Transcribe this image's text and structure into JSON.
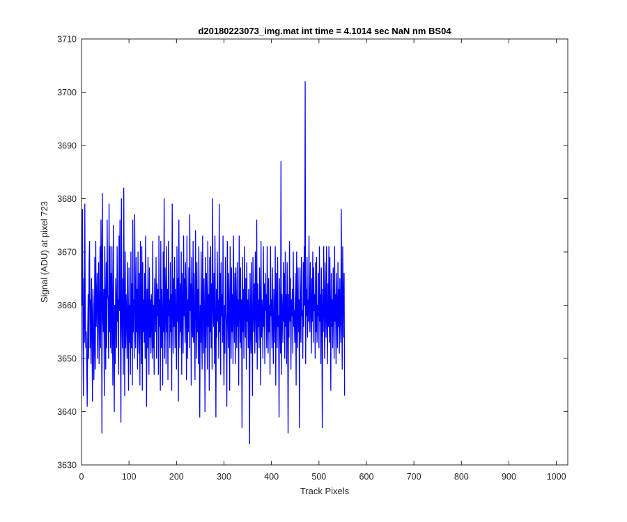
{
  "chart_data": {
    "type": "line",
    "title": "d20180223073_img.mat int time = 4.1014 sec  NaN nm BS04",
    "xlabel": "Track Pixels",
    "ylabel": "Signal (ADU) at pixel 723",
    "xlim": [
      0,
      1024
    ],
    "ylim": [
      3630,
      3710
    ],
    "xticks": [
      0,
      100,
      200,
      300,
      400,
      500,
      600,
      700,
      800,
      900,
      1000
    ],
    "yticks": [
      3630,
      3640,
      3650,
      3660,
      3670,
      3680,
      3690,
      3700,
      3710
    ],
    "grid": false,
    "box": true,
    "line_color": "#0000ff",
    "series": [
      {
        "x_start": 1,
        "x_step": 1,
        "values": [
          3660,
          3678,
          3655,
          3643,
          3665,
          3653,
          3679,
          3656,
          3652,
          3655,
          3649,
          3641,
          3654,
          3662,
          3650,
          3668,
          3672,
          3652,
          3661,
          3649,
          3665,
          3657,
          3642,
          3663,
          3660,
          3646,
          3652,
          3669,
          3648,
          3672,
          3656,
          3661,
          3666,
          3650,
          3660,
          3668,
          3649,
          3657,
          3671,
          3652,
          3676,
          3666,
          3636,
          3681,
          3659,
          3655,
          3663,
          3643,
          3671,
          3660,
          3648,
          3668,
          3652,
          3676,
          3662,
          3661,
          3650,
          3679,
          3655,
          3671,
          3652,
          3666,
          3651,
          3671,
          3658,
          3645,
          3675,
          3657,
          3640,
          3660,
          3649,
          3665,
          3660,
          3652,
          3671,
          3657,
          3661,
          3647,
          3673,
          3659,
          3676,
          3654,
          3638,
          3680,
          3658,
          3652,
          3665,
          3647,
          3682,
          3660,
          3643,
          3670,
          3652,
          3662,
          3658,
          3650,
          3668,
          3657,
          3644,
          3667,
          3653,
          3660,
          3647,
          3670,
          3652,
          3664,
          3645,
          3676,
          3655,
          3661,
          3650,
          3677,
          3662,
          3652,
          3669,
          3655,
          3663,
          3648,
          3670,
          3657,
          3651,
          3666,
          3645,
          3672,
          3659,
          3649,
          3671,
          3644,
          3668,
          3655,
          3661,
          3653,
          3666,
          3650,
          3673,
          3660,
          3641,
          3663,
          3652,
          3669,
          3658,
          3647,
          3667,
          3654,
          3661,
          3651,
          3662,
          3657,
          3650,
          3672,
          3652,
          3660,
          3647,
          3665,
          3659,
          3655,
          3669,
          3650,
          3664,
          3658,
          3663,
          3647,
          3673,
          3656,
          3661,
          3644,
          3672,
          3652,
          3663,
          3658,
          3645,
          3670,
          3655,
          3680,
          3650,
          3667,
          3661,
          3649,
          3671,
          3655,
          3663,
          3646,
          3672,
          3658,
          3661,
          3652,
          3668,
          3655,
          3662,
          3644,
          3679,
          3660,
          3651,
          3665,
          3656,
          3669,
          3652,
          3663,
          3658,
          3648,
          3671,
          3657,
          3665,
          3642,
          3676,
          3660,
          3652,
          3664,
          3655,
          3670,
          3647,
          3666,
          3659,
          3651,
          3673,
          3658,
          3665,
          3653,
          3668,
          3660,
          3646,
          3673,
          3650,
          3661,
          3655,
          3667,
          3652,
          3677,
          3659,
          3664,
          3645,
          3669,
          3657,
          3654,
          3672,
          3653,
          3666,
          3656,
          3646,
          3674,
          3661,
          3650,
          3668,
          3655,
          3663,
          3649,
          3671,
          3658,
          3639,
          3660,
          3653,
          3670,
          3656,
          3648,
          3673,
          3660,
          3651,
          3665,
          3658,
          3640,
          3669,
          3652,
          3666,
          3659,
          3648,
          3672,
          3656,
          3662,
          3644,
          3669,
          3655,
          3671,
          3652,
          3664,
          3648,
          3680,
          3660,
          3656,
          3666,
          3649,
          3673,
          3658,
          3639,
          3663,
          3654,
          3670,
          3657,
          3661,
          3650,
          3679,
          3655,
          3666,
          3647,
          3668,
          3658,
          3662,
          3653,
          3673,
          3655,
          3645,
          3660,
          3651,
          3669,
          3659,
          3656,
          3641,
          3672,
          3660,
          3652,
          3666,
          3658,
          3644,
          3671,
          3661,
          3650,
          3667,
          3655,
          3662,
          3649,
          3673,
          3658,
          3653,
          3666,
          3649,
          3667,
          3659,
          3652,
          3668,
          3656,
          3661,
          3645,
          3673,
          3660,
          3653,
          3667,
          3652,
          3661,
          3637,
          3669,
          3655,
          3663,
          3650,
          3671,
          3659,
          3654,
          3665,
          3648,
          3668,
          3657,
          3661,
          3652,
          3663,
          3659,
          3634,
          3666,
          3657,
          3651,
          3668,
          3656,
          3643,
          3669,
          3660,
          3655,
          3664,
          3651,
          3670,
          3659,
          3653,
          3676,
          3648,
          3664,
          3656,
          3661,
          3652,
          3667,
          3660,
          3645,
          3672,
          3654,
          3661,
          3658,
          3650,
          3671,
          3656,
          3664,
          3649,
          3666,
          3659,
          3662,
          3652,
          3671,
          3657,
          3651,
          3665,
          3655,
          3660,
          3647,
          3671,
          3658,
          3661,
          3652,
          3667,
          3656,
          3649,
          3663,
          3659,
          3653,
          3671,
          3645,
          3666,
          3660,
          3652,
          3669,
          3656,
          3658,
          3639,
          3665,
          3658,
          3651,
          3687,
          3647,
          3662,
          3658,
          3653,
          3668,
          3657,
          3666,
          3650,
          3670,
          3656,
          3662,
          3649,
          3668,
          3659,
          3636,
          3662,
          3654,
          3672,
          3657,
          3665,
          3648,
          3661,
          3658,
          3663,
          3651,
          3670,
          3656,
          3659,
          3653,
          3666,
          3657,
          3645,
          3670,
          3660,
          3652,
          3667,
          3655,
          3661,
          3637,
          3667,
          3660,
          3653,
          3669,
          3658,
          3659,
          3650,
          3668,
          3656,
          3671,
          3660,
          3702,
          3649,
          3663,
          3658,
          3669,
          3654,
          3661,
          3657,
          3673,
          3659,
          3655,
          3668,
          3660,
          3651,
          3665,
          3657,
          3670,
          3653,
          3667,
          3659,
          3662,
          3650,
          3668,
          3655,
          3669,
          3653,
          3660,
          3658,
          3666,
          3652,
          3671,
          3657,
          3662,
          3649,
          3667,
          3659,
          3637,
          3663,
          3655,
          3671,
          3659,
          3650,
          3668,
          3660,
          3654,
          3671,
          3658,
          3649,
          3664,
          3656,
          3671,
          3653,
          3669,
          3660,
          3644,
          3666,
          3656,
          3661,
          3652,
          3667,
          3659,
          3650,
          3671,
          3657,
          3662,
          3649,
          3666,
          3659,
          3652,
          3668,
          3656,
          3663,
          3651,
          3665,
          3658,
          3653,
          3678,
          3660,
          3648,
          3671,
          3662,
          3654,
          3666,
          3643
        ]
      }
    ]
  }
}
